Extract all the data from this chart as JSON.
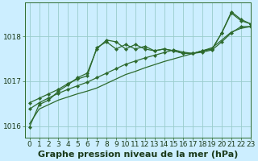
{
  "bg_color": "#cceeff",
  "grid_color": "#99cccc",
  "line_color": "#2d6a2d",
  "xlabel": "Graphe pression niveau de la mer (hPa)",
  "xlim": [
    -0.5,
    23
  ],
  "ylim": [
    1015.75,
    1018.75
  ],
  "yticks": [
    1016,
    1017,
    1018
  ],
  "xticks": [
    0,
    1,
    2,
    3,
    4,
    5,
    6,
    7,
    8,
    9,
    10,
    11,
    12,
    13,
    14,
    15,
    16,
    17,
    18,
    19,
    20,
    21,
    22,
    23
  ],
  "series_no_marker": [
    1016.05,
    1016.38,
    1016.48,
    1016.58,
    1016.65,
    1016.72,
    1016.78,
    1016.85,
    1016.95,
    1017.05,
    1017.15,
    1017.22,
    1017.3,
    1017.37,
    1017.44,
    1017.5,
    1017.56,
    1017.62,
    1017.68,
    1017.75,
    1017.92,
    1018.1,
    1018.18,
    1018.22
  ],
  "series_with_markers": [
    [
      1016.38,
      1016.52,
      1016.63,
      1016.73,
      1016.82,
      1016.9,
      1016.98,
      1017.08,
      1017.18,
      1017.28,
      1017.38,
      1017.45,
      1017.52,
      1017.58,
      1017.64,
      1017.7,
      1017.65,
      1017.62,
      1017.65,
      1017.7,
      1017.88,
      1018.08,
      1018.22,
      1018.22
    ],
    [
      1016.52,
      1016.62,
      1016.72,
      1016.82,
      1016.95,
      1017.05,
      1017.12,
      1017.75,
      1017.88,
      1017.72,
      1017.82,
      1017.72,
      1017.78,
      1017.68,
      1017.72,
      1017.68,
      1017.62,
      1017.62,
      1017.68,
      1017.72,
      1018.08,
      1018.52,
      1018.35,
      1018.28
    ],
    [
      1015.98,
      1016.48,
      1016.58,
      1016.78,
      1016.92,
      1017.08,
      1017.18,
      1017.72,
      1017.92,
      1017.88,
      1017.72,
      1017.82,
      1017.72,
      1017.68,
      1017.72,
      1017.68,
      1017.62,
      1017.62,
      1017.68,
      1017.72,
      1018.08,
      1018.55,
      1018.38,
      1018.28
    ]
  ],
  "marker": "D",
  "marker_size": 2.2,
  "line_width": 0.9,
  "xlabel_fontsize": 8,
  "tick_fontsize": 6.5
}
